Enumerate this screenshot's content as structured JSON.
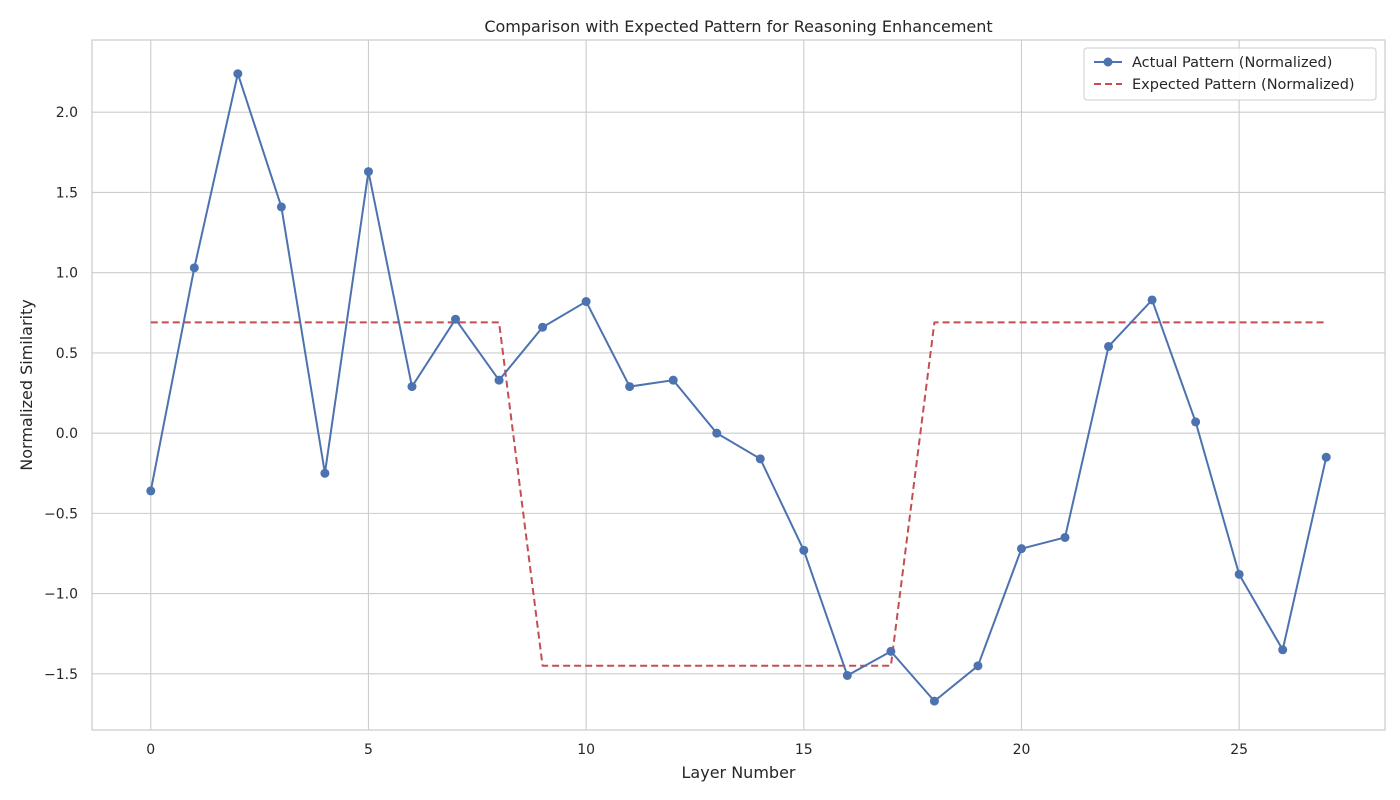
{
  "chart_data": {
    "type": "line",
    "title": "Comparison with Expected Pattern for Reasoning Enhancement",
    "xlabel": "Layer Number",
    "ylabel": "Normalized Similarity",
    "xlim": [
      -1.35,
      28.35
    ],
    "ylim": [
      -1.85,
      2.45
    ],
    "xticks": [
      0,
      5,
      10,
      15,
      20,
      25
    ],
    "yticks": [
      -1.5,
      -1.0,
      -0.5,
      0.0,
      0.5,
      1.0,
      1.5,
      2.0
    ],
    "grid": true,
    "legend_position": "top-right",
    "x": [
      0,
      1,
      2,
      3,
      4,
      5,
      6,
      7,
      8,
      9,
      10,
      11,
      12,
      13,
      14,
      15,
      16,
      17,
      18,
      19,
      20,
      21,
      22,
      23,
      24,
      25,
      26,
      27
    ],
    "series": [
      {
        "name": "Actual Pattern (Normalized)",
        "color": "#4c72b0",
        "style": "solid",
        "marker": "circle",
        "values": [
          -0.36,
          1.03,
          2.24,
          1.41,
          -0.25,
          1.63,
          0.29,
          0.71,
          0.33,
          0.66,
          0.82,
          0.29,
          0.33,
          0.0,
          -0.16,
          -0.73,
          -1.51,
          -1.36,
          -1.67,
          -1.45,
          -0.72,
          -0.65,
          0.54,
          0.83,
          0.07,
          -0.88,
          -1.35,
          -0.15
        ]
      },
      {
        "name": "Expected Pattern (Normalized)",
        "color": "#c44e52",
        "style": "dashed",
        "marker": "none",
        "values": [
          0.69,
          0.69,
          0.69,
          0.69,
          0.69,
          0.69,
          0.69,
          0.69,
          0.69,
          -1.45,
          -1.45,
          -1.45,
          -1.45,
          -1.45,
          -1.45,
          -1.45,
          -1.45,
          -1.45,
          0.69,
          0.69,
          0.69,
          0.69,
          0.69,
          0.69,
          0.69,
          0.69,
          0.69,
          0.69
        ]
      }
    ]
  }
}
